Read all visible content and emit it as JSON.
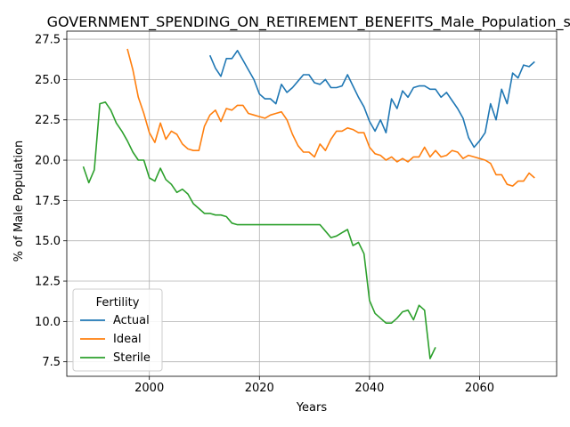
{
  "chart_data": {
    "type": "line",
    "title": "GOVERNMENT_SPENDING_ON_RETIREMENT_BENEFITS_Male_Population_sco",
    "xlabel": "Years",
    "ylabel": "% of Male Population",
    "xlim": [
      1985,
      2074
    ],
    "ylim": [
      6.6,
      28.0
    ],
    "xticks": [
      2000,
      2020,
      2040,
      2060
    ],
    "yticks": [
      7.5,
      10.0,
      12.5,
      15.0,
      17.5,
      20.0,
      22.5,
      25.0,
      27.5
    ],
    "grid": true,
    "legend": {
      "title": "Fertility",
      "placement": "lower-left"
    },
    "series": [
      {
        "name": "Actual",
        "color": "#1f77b4",
        "x": [
          2011,
          2012,
          2013,
          2014,
          2015,
          2016,
          2017,
          2018,
          2019,
          2020,
          2021,
          2022,
          2023,
          2024,
          2025,
          2026,
          2027,
          2028,
          2029,
          2030,
          2031,
          2032,
          2033,
          2034,
          2035,
          2036,
          2037,
          2038,
          2039,
          2040,
          2041,
          2042,
          2043,
          2044,
          2045,
          2046,
          2047,
          2048,
          2049,
          2050,
          2051,
          2052,
          2053,
          2054,
          2055,
          2056,
          2057,
          2058,
          2059,
          2060,
          2061,
          2062,
          2063,
          2064,
          2065,
          2066,
          2067,
          2068,
          2069,
          2070
        ],
        "y": [
          26.5,
          25.7,
          25.2,
          26.3,
          26.3,
          26.8,
          26.2,
          25.6,
          25.0,
          24.1,
          23.8,
          23.8,
          23.5,
          24.7,
          24.2,
          24.5,
          24.9,
          25.3,
          25.3,
          24.8,
          24.7,
          25.0,
          24.5,
          24.5,
          24.6,
          25.3,
          24.6,
          23.9,
          23.3,
          22.4,
          21.8,
          22.5,
          21.7,
          23.8,
          23.2,
          24.3,
          23.9,
          24.5,
          24.6,
          24.6,
          24.4,
          24.4,
          23.9,
          24.2,
          23.7,
          23.2,
          22.6,
          21.4,
          20.8,
          21.2,
          21.7,
          23.5,
          22.5,
          24.4,
          23.5,
          25.4,
          25.1,
          25.9,
          25.8,
          26.1
        ]
      },
      {
        "name": "Ideal",
        "color": "#ff7f0e",
        "x": [
          1996,
          1997,
          1998,
          1999,
          2000,
          2001,
          2002,
          2003,
          2004,
          2005,
          2006,
          2007,
          2008,
          2009,
          2010,
          2011,
          2012,
          2013,
          2014,
          2015,
          2016,
          2017,
          2018,
          2019,
          2020,
          2021,
          2022,
          2023,
          2024,
          2025,
          2026,
          2027,
          2028,
          2029,
          2030,
          2031,
          2032,
          2033,
          2034,
          2035,
          2036,
          2037,
          2038,
          2039,
          2040,
          2041,
          2042,
          2043,
          2044,
          2045,
          2046,
          2047,
          2048,
          2049,
          2050,
          2051,
          2052,
          2053,
          2054,
          2055,
          2056,
          2057,
          2058,
          2059,
          2060,
          2061,
          2062,
          2063,
          2064,
          2065,
          2066,
          2067,
          2068,
          2069,
          2070
        ],
        "y": [
          26.9,
          25.6,
          23.9,
          22.9,
          21.7,
          21.1,
          22.3,
          21.3,
          21.8,
          21.6,
          21.0,
          20.7,
          20.6,
          20.6,
          22.1,
          22.8,
          23.1,
          22.4,
          23.2,
          23.1,
          23.4,
          23.4,
          22.9,
          22.8,
          22.7,
          22.6,
          22.8,
          22.9,
          23.0,
          22.5,
          21.6,
          20.9,
          20.5,
          20.5,
          20.2,
          21.0,
          20.6,
          21.3,
          21.8,
          21.8,
          22.0,
          21.9,
          21.7,
          21.7,
          20.8,
          20.4,
          20.3,
          20.0,
          20.2,
          19.9,
          20.1,
          19.9,
          20.2,
          20.2,
          20.8,
          20.2,
          20.6,
          20.2,
          20.3,
          20.6,
          20.5,
          20.1,
          20.3,
          20.2,
          20.1,
          20.0,
          19.8,
          19.1,
          19.1,
          18.5,
          18.4,
          18.7,
          18.7,
          19.2,
          18.9
        ]
      },
      {
        "name": "Sterile",
        "color": "#2ca02c",
        "x": [
          1988,
          1989,
          1990,
          1991,
          1992,
          1993,
          1994,
          1995,
          1996,
          1997,
          1998,
          1999,
          2000,
          2001,
          2002,
          2003,
          2004,
          2005,
          2006,
          2007,
          2008,
          2009,
          2010,
          2011,
          2012,
          2013,
          2014,
          2015,
          2016,
          2017,
          2018,
          2019,
          2020,
          2021,
          2022,
          2023,
          2024,
          2025,
          2026,
          2027,
          2028,
          2029,
          2030,
          2031,
          2032,
          2033,
          2034,
          2035,
          2036,
          2037,
          2038,
          2039,
          2040,
          2041,
          2042,
          2043,
          2044,
          2045,
          2046,
          2047,
          2048,
          2049,
          2050,
          2051,
          2052
        ],
        "y": [
          19.6,
          18.6,
          19.4,
          23.5,
          23.6,
          23.1,
          22.3,
          21.8,
          21.2,
          20.5,
          20.0,
          20.0,
          18.9,
          18.7,
          19.5,
          18.8,
          18.5,
          18.0,
          18.2,
          17.9,
          17.3,
          17.0,
          16.7,
          16.7,
          16.6,
          16.6,
          16.5,
          16.1,
          16.0,
          16.0,
          16.0,
          16.0,
          16.0,
          16.0,
          16.0,
          16.0,
          16.0,
          16.0,
          16.0,
          16.0,
          16.0,
          16.0,
          16.0,
          16.0,
          15.6,
          15.2,
          15.3,
          15.5,
          15.7,
          14.7,
          14.9,
          14.2,
          11.3,
          10.5,
          10.2,
          9.9,
          9.9,
          10.2,
          10.6,
          10.7,
          10.1,
          11.0,
          10.7,
          7.7,
          8.4
        ]
      }
    ]
  }
}
